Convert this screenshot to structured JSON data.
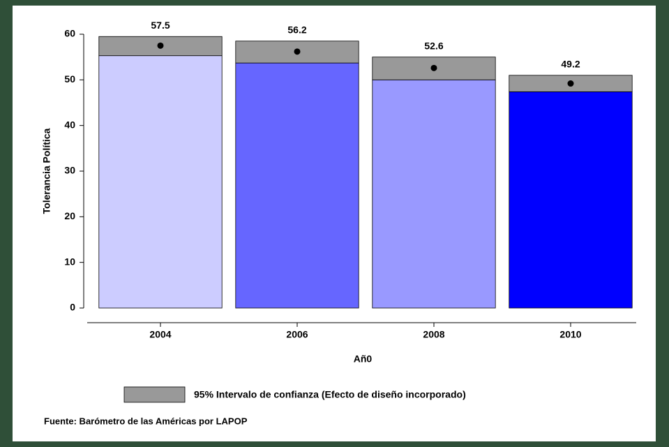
{
  "chart_data": {
    "type": "bar",
    "categories": [
      "2004",
      "2006",
      "2008",
      "2010"
    ],
    "values": [
      57.5,
      56.2,
      52.6,
      49.2
    ],
    "ci_low": [
      55.3,
      53.7,
      50.0,
      47.4
    ],
    "ci_high": [
      59.5,
      58.5,
      55.0,
      51.0
    ],
    "colors": [
      "#ccccff",
      "#6666ff",
      "#9999ff",
      "#0000ff"
    ],
    "ci_color": "#999999",
    "ci_label": "95% Intervalo de confianza (Efecto de diseño incorporado)",
    "xlabel": "Añ0",
    "ylabel": "Tolerancia Política",
    "ylim": [
      0,
      60
    ],
    "yticks": [
      0,
      10,
      20,
      30,
      40,
      50,
      60
    ],
    "source": "Fuente: Barómetro de las Américas por LAPOP"
  }
}
